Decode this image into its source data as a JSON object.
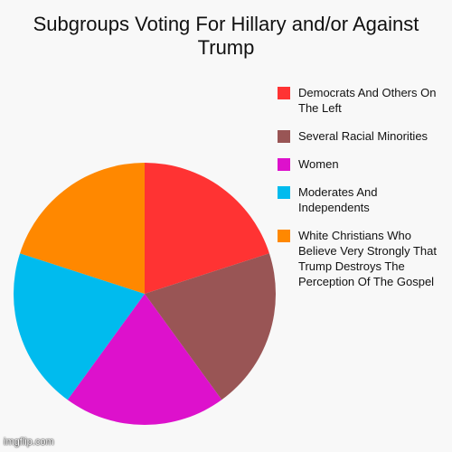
{
  "chart_data": {
    "type": "pie",
    "title": "Subgroups Voting For Hillary and/or Against\nTrump",
    "categories": [
      "Democrats And Others On The Left",
      "Several Racial Minorities",
      "Women",
      "Moderates And Independents",
      "White Christians Who Believe Very Strongly That Trump Destroys The Perception Of The Gospel"
    ],
    "values": [
      20,
      20,
      20,
      20,
      20
    ],
    "colors": [
      "#ff3333",
      "#995555",
      "#dd11cc",
      "#00bbee",
      "#ff8800"
    ],
    "legend_position": "right"
  },
  "watermark": "imgflip.com"
}
